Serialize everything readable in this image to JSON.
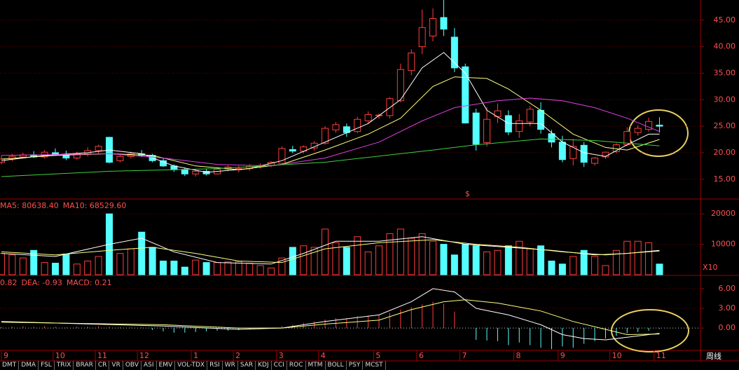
{
  "chart_data": [
    {
      "type": "candlestick",
      "x": [
        0,
        1,
        2,
        3,
        4,
        5,
        6,
        7,
        8,
        9,
        10,
        11,
        12,
        13,
        14,
        15,
        16,
        17,
        18,
        19,
        20,
        21,
        22,
        23,
        24,
        25,
        26,
        27,
        28,
        29,
        30,
        31,
        32,
        33,
        34,
        35,
        36,
        37,
        38,
        39,
        40,
        41,
        42,
        43,
        44,
        45,
        46,
        47,
        48,
        49,
        50,
        51,
        52,
        53,
        54,
        55,
        56,
        57,
        58,
        59,
        60,
        61
      ],
      "open": [
        18.2,
        18.8,
        19.2,
        19.6,
        19.2,
        20.0,
        19.6,
        19.0,
        19.8,
        20.4,
        22.9,
        18.5,
        19.3,
        19.8,
        19.5,
        18.5,
        17.5,
        16.8,
        16.0,
        16.5,
        16.0,
        16.9,
        16.8,
        17.0,
        17.4,
        17.6,
        18.0,
        20.6,
        20.3,
        20.9,
        21.8,
        24.3,
        24.9,
        24.0,
        26.0,
        27.0,
        27.0,
        29.8,
        35.5,
        40.0,
        42.0,
        45.5,
        41.8,
        36.2,
        27.5,
        21.9,
        26.8,
        27.0,
        24.0,
        25.8,
        28.0,
        23.6,
        22.0,
        18.9,
        21.4,
        18.0,
        19.2,
        20.2,
        21.5,
        23.8,
        24.4,
        25.2
      ],
      "high": [
        19.5,
        19.8,
        20.0,
        20.3,
        20.5,
        20.8,
        20.4,
        20.2,
        21.0,
        21.5,
        23.0,
        19.6,
        20.2,
        20.5,
        19.8,
        19.0,
        17.8,
        17.2,
        16.8,
        17.0,
        17.2,
        17.6,
        17.5,
        17.8,
        18.0,
        18.4,
        21.2,
        21.3,
        21.4,
        22.2,
        25.0,
        25.8,
        25.5,
        26.8,
        27.8,
        27.4,
        30.5,
        36.8,
        39.5,
        47.0,
        47.2,
        48.8,
        43.5,
        36.8,
        28.3,
        28.6,
        29.3,
        28.0,
        27.3,
        28.8,
        29.5,
        24.3,
        23.2,
        22.6,
        22.0,
        19.2,
        20.2,
        21.8,
        24.8,
        25.2,
        26.6,
        26.7
      ],
      "low": [
        17.8,
        18.4,
        18.9,
        19.0,
        18.9,
        19.4,
        18.6,
        18.7,
        19.3,
        19.8,
        18.0,
        18.2,
        18.9,
        19.2,
        18.2,
        17.3,
        16.4,
        15.6,
        15.5,
        15.7,
        15.9,
        16.5,
        16.3,
        16.6,
        17.0,
        17.3,
        17.8,
        19.9,
        19.9,
        20.4,
        21.5,
        23.8,
        23.0,
        23.7,
        25.6,
        26.4,
        26.5,
        29.5,
        34.6,
        38.6,
        41.0,
        42.0,
        35.2,
        25.5,
        20.4,
        21.2,
        25.6,
        23.3,
        22.8,
        25.0,
        23.6,
        21.0,
        18.2,
        17.6,
        17.3,
        17.6,
        18.8,
        19.9,
        21.2,
        23.2,
        24.0,
        23.8
      ],
      "close": [
        18.8,
        19.3,
        19.6,
        19.2,
        20.1,
        19.6,
        19.0,
        19.8,
        20.4,
        21.2,
        18.2,
        19.3,
        19.8,
        19.5,
        18.5,
        17.5,
        16.8,
        16.0,
        16.5,
        16.0,
        16.9,
        17.3,
        17.0,
        17.4,
        17.6,
        18.2,
        20.8,
        20.3,
        21.1,
        21.8,
        24.6,
        25.3,
        23.8,
        26.3,
        27.2,
        27.1,
        30.2,
        35.7,
        38.8,
        43.6,
        45.3,
        43.3,
        36.0,
        25.6,
        21.6,
        26.3,
        27.9,
        23.9,
        26.0,
        28.2,
        24.4,
        22.0,
        18.7,
        21.2,
        18.2,
        19.0,
        20.1,
        21.5,
        24.0,
        24.6,
        25.9,
        25.0
      ],
      "up_color": "#ff3c3c",
      "down_color": "#54ffff",
      "lines": [
        {
          "color": "#ffffff",
          "x": [
            0,
            4,
            8,
            10,
            13,
            16,
            19,
            23,
            26,
            30,
            34,
            37,
            39,
            41,
            43,
            45,
            47,
            50,
            52,
            54,
            56,
            58,
            60,
            61
          ],
          "values": [
            18.5,
            19.5,
            20.0,
            20.5,
            19.8,
            17.5,
            16.3,
            17.0,
            18.5,
            22.0,
            25.5,
            30.0,
            36.0,
            38.9,
            35.0,
            28.0,
            25.5,
            25.5,
            22.0,
            20.0,
            19.3,
            21.5,
            23.5,
            23.5
          ]
        },
        {
          "color": "#ffff80",
          "x": [
            0,
            5,
            10,
            14,
            18,
            22,
            26,
            30,
            34,
            37,
            40,
            42,
            45,
            47,
            50,
            53,
            56,
            58,
            61
          ],
          "values": [
            18.8,
            19.5,
            19.8,
            19.5,
            17.5,
            16.8,
            17.8,
            20.5,
            23.5,
            26.5,
            32.5,
            34.3,
            34.0,
            32.0,
            28.0,
            23.5,
            21.0,
            20.5,
            22.5
          ]
        },
        {
          "color": "#e040e0",
          "x": [
            0,
            10,
            15,
            20,
            25,
            30,
            35,
            39,
            42,
            46,
            49,
            52,
            55,
            58,
            61
          ],
          "values": [
            19.5,
            19.8,
            19.0,
            17.8,
            17.5,
            19.0,
            22.0,
            26.0,
            28.5,
            29.8,
            30.3,
            29.8,
            28.5,
            26.5,
            24.0
          ]
        },
        {
          "color": "#40d040",
          "x": [
            0,
            10,
            20,
            30,
            40,
            44,
            50,
            55,
            61
          ],
          "values": [
            15.5,
            16.5,
            17.0,
            18.2,
            20.5,
            21.5,
            22.6,
            22.3,
            21.3
          ]
        }
      ],
      "annotations": [
        {
          "text": "$",
          "x": 43.2,
          "y": 12.2,
          "color": "#ff3c3c"
        }
      ],
      "xlim": [
        -0.13,
        64.8
      ],
      "ylim": [
        11.4,
        48.8
      ],
      "yticks": [
        {
          "value": 15,
          "label": "15.00"
        },
        {
          "value": 20,
          "label": "20.00"
        },
        {
          "value": 25,
          "label": "25.00"
        },
        {
          "value": 30,
          "label": "30.00"
        },
        {
          "value": 35,
          "label": "35.00"
        },
        {
          "value": 40,
          "label": "40.00"
        },
        {
          "value": 45,
          "label": "45.00"
        }
      ],
      "grid": true
    },
    {
      "type": "bar",
      "x": [
        0,
        1,
        2,
        3,
        4,
        5,
        6,
        7,
        8,
        9,
        10,
        11,
        12,
        13,
        14,
        15,
        16,
        17,
        18,
        19,
        20,
        21,
        22,
        23,
        24,
        25,
        26,
        27,
        28,
        29,
        30,
        31,
        32,
        33,
        34,
        35,
        36,
        37,
        38,
        39,
        40,
        41,
        42,
        43,
        44,
        45,
        46,
        47,
        48,
        49,
        50,
        51,
        52,
        53,
        54,
        55,
        56,
        57,
        58,
        59,
        60,
        61
      ],
      "values": [
        7000,
        6500,
        5500,
        8000,
        4000,
        3800,
        6800,
        3500,
        4500,
        6000,
        20000,
        7000,
        8500,
        14000,
        9000,
        4500,
        4500,
        2500,
        4800,
        4000,
        4000,
        4200,
        4300,
        3800,
        3000,
        2200,
        5500,
        9000,
        9500,
        9000,
        15000,
        10500,
        9000,
        12500,
        7500,
        9500,
        13500,
        15000,
        12000,
        13500,
        11000,
        10000,
        6500,
        10000,
        9500,
        7500,
        8000,
        9500,
        11000,
        8500,
        9500,
        4500,
        3500,
        6000,
        8000,
        6000,
        3000,
        8000,
        11000,
        11000,
        10500,
        3500
      ],
      "lines": [
        {
          "color": "#ffffff",
          "x": [
            0,
            5,
            10,
            13,
            16,
            20,
            25,
            28,
            31,
            35,
            39,
            43,
            47,
            51,
            55,
            58,
            61
          ],
          "values": [
            7000,
            6000,
            10000,
            12000,
            7500,
            4000,
            3500,
            7000,
            11000,
            11000,
            12500,
            10000,
            9000,
            8000,
            6500,
            7000,
            8000
          ]
        },
        {
          "color": "#ffff80",
          "x": [
            0,
            5,
            10,
            14,
            18,
            22,
            26,
            30,
            35,
            40,
            44,
            48,
            52,
            56,
            61
          ],
          "values": [
            7500,
            6500,
            8000,
            9000,
            7000,
            4500,
            4000,
            8500,
            10500,
            11500,
            10000,
            9000,
            7500,
            6500,
            7800
          ]
        }
      ],
      "texts": [
        {
          "text": "MA5: 80638.40",
          "color": "#ffffff"
        },
        {
          "text": "MA10: 68529.60",
          "color": "#ffffff"
        }
      ],
      "unit_label": "X10",
      "xlim": [
        -0.13,
        64.8
      ],
      "ylim": [
        0,
        24650
      ],
      "yticks": [
        10000,
        20000
      ],
      "grid": true
    },
    {
      "type": "macd",
      "x": [
        0,
        1,
        2,
        3,
        4,
        5,
        6,
        7,
        8,
        9,
        10,
        11,
        12,
        13,
        14,
        15,
        16,
        17,
        18,
        19,
        20,
        21,
        22,
        23,
        24,
        25,
        26,
        27,
        28,
        29,
        30,
        31,
        32,
        33,
        34,
        35,
        36,
        37,
        38,
        39,
        40,
        41,
        42,
        43,
        44,
        45,
        46,
        47,
        48,
        49,
        50,
        51,
        52,
        53,
        54,
        55,
        56,
        57,
        58,
        59,
        60,
        61
      ],
      "values": [
        0.2,
        0.2,
        0.3,
        0.2,
        0.3,
        0.2,
        0.1,
        0.2,
        0.2,
        0.3,
        0.2,
        0.1,
        0.1,
        0.1,
        -0.3,
        -0.5,
        -0.7,
        -0.7,
        -0.6,
        -0.5,
        -0.4,
        -0.4,
        -0.3,
        -0.2,
        -0.1,
        0.0,
        0.3,
        0.5,
        0.8,
        1.0,
        1.3,
        1.5,
        1.5,
        1.8,
        1.9,
        2.0,
        2.3,
        2.8,
        3.2,
        3.6,
        4.0,
        3.7,
        2.5,
        0.0,
        -1.8,
        -1.9,
        -2.0,
        -2.6,
        -2.2,
        -2.6,
        -3.0,
        -3.2,
        -2.8,
        -3.0,
        -2.4,
        -2.0,
        -1.6,
        -1.2,
        -0.8,
        -0.6,
        -0.4,
        -0.1
      ],
      "up_color": "#ff3c3c",
      "down_color": "#54ffff",
      "lines": [
        {
          "color": "#ffffff",
          "x": [
            0,
            15,
            22,
            26,
            30,
            35,
            38,
            40,
            42,
            44,
            47,
            50,
            52,
            54,
            56,
            58,
            60,
            61
          ],
          "values": [
            1.0,
            0.3,
            -0.2,
            0.0,
            1.0,
            2.0,
            4.0,
            6.0,
            5.5,
            3.0,
            2.0,
            0.5,
            -1.0,
            -1.6,
            -1.8,
            -1.4,
            -1.0,
            -0.8
          ]
        },
        {
          "color": "#ffff80",
          "x": [
            0,
            15,
            22,
            26,
            30,
            35,
            38,
            41,
            43,
            46,
            50,
            53,
            56,
            58,
            61
          ],
          "values": [
            0.9,
            0.5,
            0.0,
            0.0,
            0.6,
            1.2,
            2.8,
            4.0,
            4.3,
            3.8,
            2.6,
            1.0,
            -0.2,
            -1.0,
            -0.9
          ]
        }
      ],
      "texts": [
        {
          "text": "0.82",
          "color": "#ffffff"
        },
        {
          "text": "DEA: -0.93",
          "color": "#ffffff"
        },
        {
          "text": "MACD: 0.21",
          "color": "#ff40ff"
        }
      ],
      "xlim": [
        -0.13,
        64.8
      ],
      "ylim": [
        -3.4,
        7.8
      ],
      "yticks": [
        {
          "value": 0,
          "label": "0.00"
        },
        {
          "value": 3,
          "label": "3.00"
        },
        {
          "value": 6,
          "label": "6.00"
        }
      ],
      "xticks": [
        {
          "value": 0,
          "label": "9"
        },
        {
          "value": 4.8,
          "label": "10"
        },
        {
          "value": 8.7,
          "label": "11"
        },
        {
          "value": 12.6,
          "label": "12"
        },
        {
          "value": 17.6,
          "label": "1"
        },
        {
          "value": 21.5,
          "label": "2"
        },
        {
          "value": 25.5,
          "label": "3"
        },
        {
          "value": 29.4,
          "label": "4"
        },
        {
          "value": 34.5,
          "label": "5"
        },
        {
          "value": 38.5,
          "label": "6"
        },
        {
          "value": 42.5,
          "label": "7"
        },
        {
          "value": 47.5,
          "label": "8"
        },
        {
          "value": 51.6,
          "label": "9"
        },
        {
          "value": 56.4,
          "label": "10"
        },
        {
          "value": 60.5,
          "label": "11"
        }
      ],
      "grid": true
    }
  ],
  "tabs": [
    "DMT",
    "DMA",
    "FSL",
    "TRIX",
    "BRAR",
    "CR",
    "VR",
    "OBV",
    "ASI",
    "EMV",
    "VOL-TDX",
    "RSI",
    "WR",
    "SAR",
    "KDJ",
    "CCI",
    "ROC",
    "MTM",
    "BOLL",
    "PSY",
    "MCST"
  ],
  "period": "周线"
}
